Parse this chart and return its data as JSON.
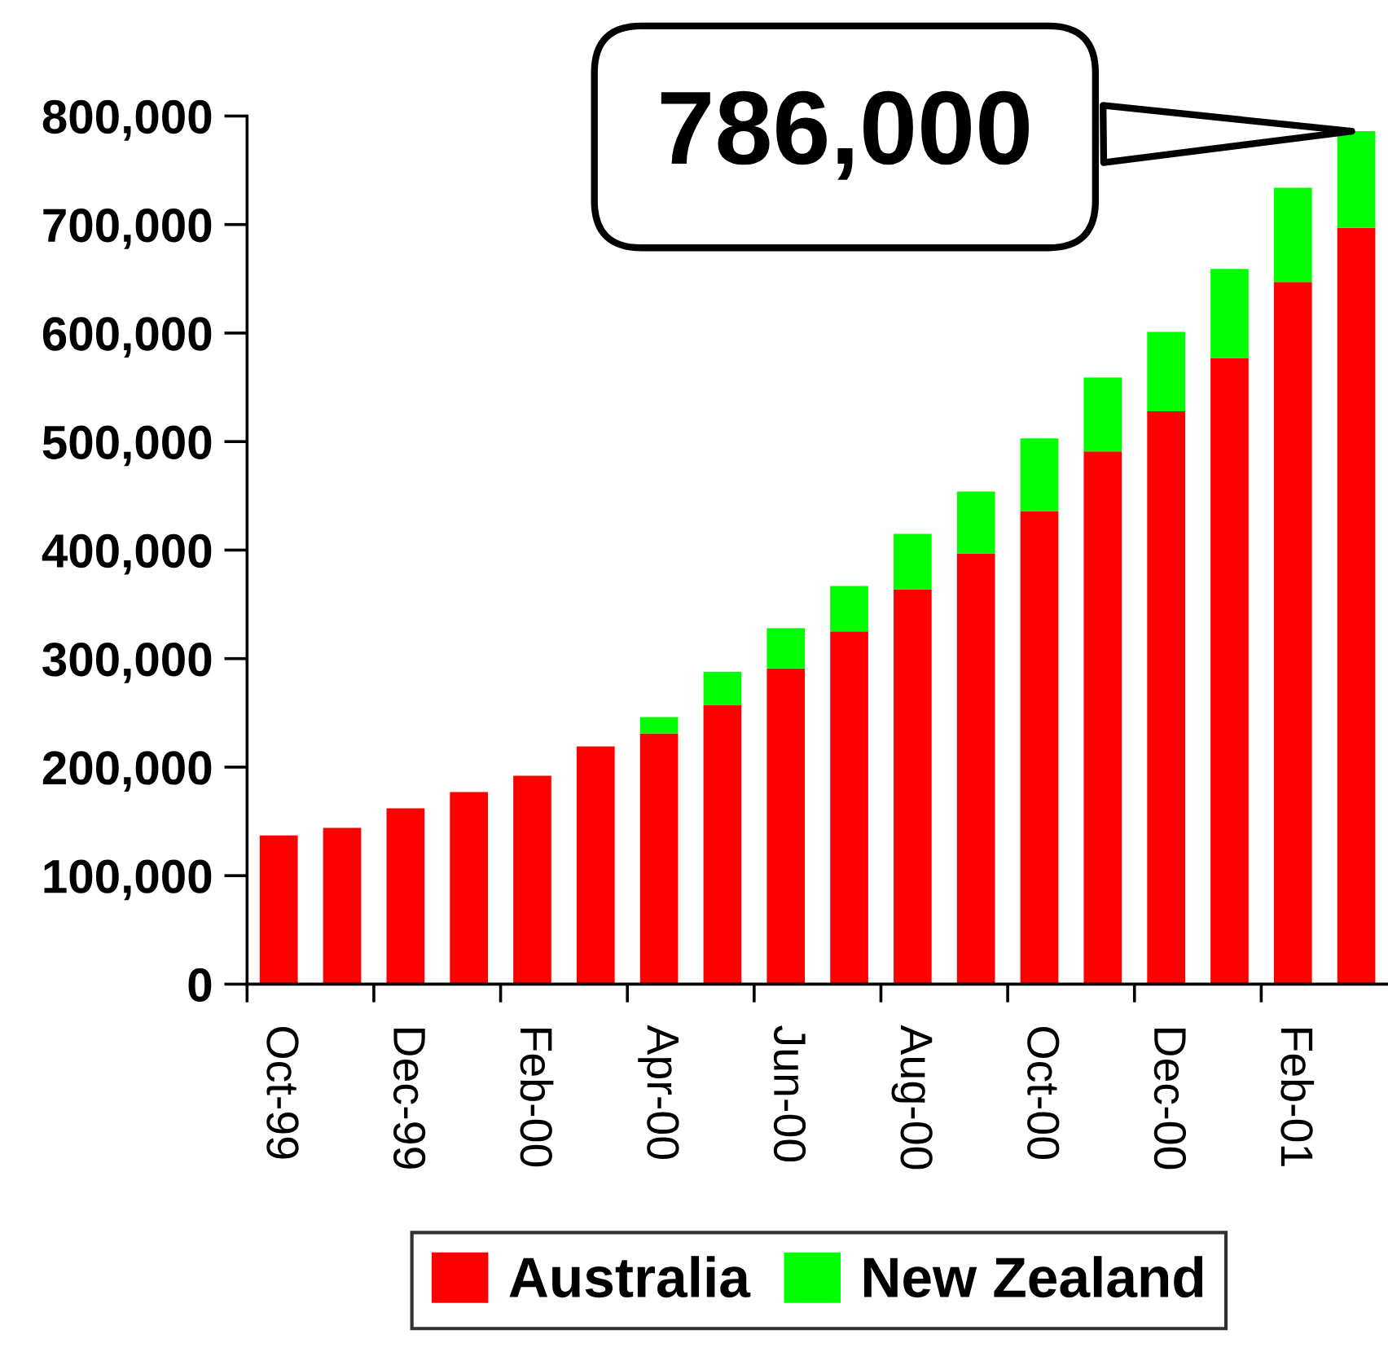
{
  "chart_data": {
    "type": "bar",
    "stacked": true,
    "legend": "bottom",
    "categories": [
      "Oct-99",
      null,
      "Dec-99",
      null,
      "Feb-00",
      null,
      "Apr-00",
      null,
      "Jun-00",
      null,
      "Aug-00",
      null,
      "Oct-00",
      null,
      "Dec-00",
      null,
      "Feb-01",
      null
    ],
    "series": [
      {
        "name": "Australia",
        "color": "#ff0000",
        "values": [
          137000,
          144000,
          162000,
          177000,
          192000,
          219000,
          231000,
          257000,
          291000,
          325000,
          364000,
          397000,
          436000,
          491000,
          528000,
          577000,
          647000,
          697000
        ]
      },
      {
        "name": "New Zealand",
        "color": "#00ff00",
        "values": [
          null,
          null,
          null,
          null,
          null,
          null,
          15000,
          31000,
          37000,
          42000,
          51000,
          57000,
          67000,
          68000,
          73000,
          82000,
          87000,
          89000
        ]
      }
    ],
    "ylim": [
      0,
      800000
    ],
    "yticks": [
      0,
      {
        "value": 100000,
        "label": "100,000"
      },
      {
        "value": 200000,
        "label": "200,000"
      },
      {
        "value": 300000,
        "label": "300,000"
      },
      {
        "value": 400000,
        "label": "400,000"
      },
      {
        "value": 500000,
        "label": "500,000"
      },
      {
        "value": 600000,
        "label": "600,000"
      },
      {
        "value": 700000,
        "label": "700,000"
      },
      {
        "value": 800000,
        "label": "800,000"
      }
    ],
    "annotations": [
      "786,000"
    ]
  }
}
